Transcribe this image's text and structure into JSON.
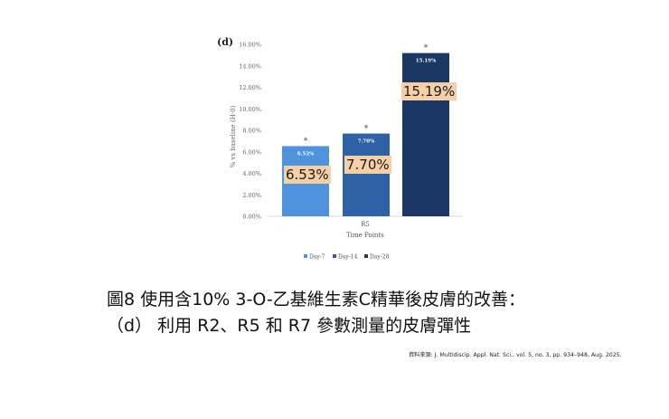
{
  "chart_data": {
    "type": "bar",
    "panel_label": "(d)",
    "categories": [
      "R5"
    ],
    "series": [
      {
        "name": "Day-7",
        "values": [
          6.53
        ],
        "label": "6.53%",
        "color": "#4f93dc"
      },
      {
        "name": "Day-14",
        "values": [
          7.7
        ],
        "label": "7.70%",
        "color": "#2e61a5"
      },
      {
        "name": "Day-28",
        "values": [
          15.19
        ],
        "label": "15.19%",
        "color": "#1b3764"
      }
    ],
    "significance_marker": "*",
    "xlabel": "Time Points",
    "ylabel": "% vs baseline (H-0)",
    "ylim": [
      0,
      16
    ],
    "yticks": [
      "0.00%",
      "2.00%",
      "4.00%",
      "6.00%",
      "8.00%",
      "10.00%",
      "12.00%",
      "14.00%",
      "16.00%"
    ],
    "grid": false,
    "legend_position": "bottom",
    "overlay_labels": [
      "6.53%",
      "7.70%",
      "15.19%"
    ]
  },
  "caption": {
    "line1": "圖8 使用含10% 3-O-乙基維生素C精華後皮膚的改善：",
    "line2": "（d） 利用 R2、R5 和 R7 參數測量的皮膚彈性"
  },
  "source_note": "資料來源: J. Multidiscip. Appl. Nat. Sci., vol. 5, no. 3, pp. 934–948, Aug. 2025."
}
